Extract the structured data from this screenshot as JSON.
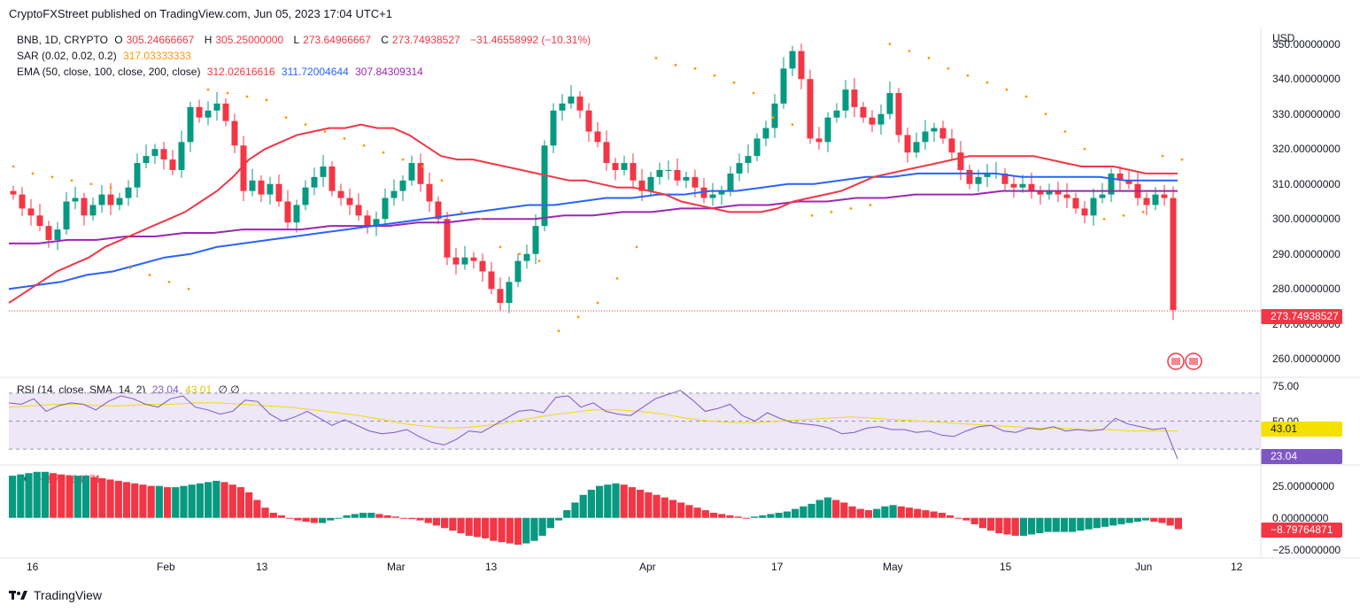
{
  "header": {
    "publisher_line": "CryptoFXStreet published on TradingView.com, Jun 05, 2023 17:04 UTC+1"
  },
  "legend": {
    "symbol": "BNB, 1D, CRYPTO",
    "open_label": "O",
    "open": "305.24666667",
    "high_label": "H",
    "high": "305.25000000",
    "low_label": "L",
    "low": "273.64966667",
    "close_label": "C",
    "close": "273.74938527",
    "change": "−31.46558992 (−10.31%)",
    "sar_label": "SAR (0.02, 0.02, 0.2)",
    "sar_value": "317.03333333",
    "ema_label": "EMA (50, close, 100, close, 200, close)",
    "ema50_value": "312.02616616",
    "ema100_value": "311.72004644",
    "ema200_value": "307.84309314",
    "rsi_label": "RSI (14, close, SMA, 14, 2)",
    "rsi_value": "23.04",
    "rsi_sma_value": "43.01",
    "rsi_extra": "∅ ∅",
    "ao_label": "AO",
    "ao_value": "−8.79764871"
  },
  "colors": {
    "up": "#089981",
    "down": "#f23645",
    "sar": "#ff9800",
    "ema50": "#f23645",
    "ema100": "#2962ff",
    "ema200": "#9c27b0",
    "rsi": "#7e57c2",
    "rsi_sma": "#f5d90a",
    "rsi_band": "#ede7f6"
  },
  "chart_data": [
    {
      "type": "candlestick",
      "title": "BNB, 1D, CRYPTO",
      "currency": "USD",
      "ylim": [
        255,
        355
      ],
      "y_ticks": [
        "350.00000000",
        "340.00000000",
        "330.00000000",
        "320.00000000",
        "310.00000000",
        "300.00000000",
        "290.00000000",
        "280.00000000",
        "270.00000000",
        "260.00000000"
      ],
      "x_tick_labels": [
        "16",
        "Feb",
        "13",
        "Mar",
        "13",
        "Apr",
        "17",
        "May",
        "15",
        "Jun",
        "12"
      ],
      "last_price_label": "273.74938527",
      "last_price": 273.75,
      "closes": [
        307,
        303,
        301,
        298,
        294,
        297,
        305,
        306,
        301,
        304,
        307,
        304,
        306,
        309,
        316,
        318,
        320,
        317,
        314,
        322,
        332,
        329,
        331,
        333,
        328,
        321,
        308,
        311,
        307,
        310,
        305,
        299,
        304,
        309,
        312,
        315,
        308,
        306,
        304,
        301,
        298,
        300,
        306,
        308,
        311,
        316,
        310,
        305,
        300,
        289,
        287,
        289,
        288,
        285,
        280,
        276,
        282,
        288,
        290,
        298,
        321,
        331,
        333,
        335,
        331,
        325,
        322,
        316,
        314,
        316,
        311,
        308,
        312,
        314,
        314,
        311,
        312,
        309,
        306,
        307,
        308,
        313,
        316,
        318,
        323,
        326,
        333,
        343,
        348,
        340,
        323,
        322,
        329,
        331,
        337,
        332,
        329,
        327,
        330,
        336,
        324,
        319,
        322,
        325,
        326,
        323,
        319,
        314,
        310,
        312,
        313,
        313,
        310,
        309,
        310,
        308,
        307,
        308,
        307,
        306,
        303,
        301,
        306,
        307,
        313,
        311,
        310,
        306,
        304,
        307,
        306,
        274
      ],
      "ema50": [
        276,
        279,
        282,
        285,
        287,
        289,
        292,
        294,
        296,
        298,
        300,
        302,
        305,
        308,
        312,
        317,
        320,
        322,
        324,
        325,
        326,
        326,
        327,
        326,
        326,
        324,
        321,
        318,
        317,
        317,
        316,
        315,
        314,
        313,
        312,
        311,
        311,
        310,
        309,
        309,
        308,
        307,
        305,
        304,
        303,
        302,
        302,
        302,
        303,
        305,
        306,
        307,
        308,
        310,
        312,
        313,
        314,
        315,
        316,
        317,
        318,
        318,
        318,
        318,
        318,
        317,
        316,
        315,
        315,
        315,
        314,
        313,
        313,
        313
      ],
      "ema100": [
        280,
        281,
        282,
        284,
        285,
        287,
        289,
        290,
        292,
        293,
        294,
        295,
        296,
        297,
        298,
        299,
        300,
        301,
        302,
        303,
        304,
        304,
        305,
        306,
        306,
        307,
        307,
        308,
        308,
        309,
        310,
        310,
        311,
        312,
        312,
        313,
        313,
        313,
        313,
        312,
        312,
        312,
        312,
        311,
        311,
        311
      ],
      "ema200": [
        293,
        293,
        294,
        294,
        295,
        295,
        296,
        296,
        297,
        297,
        297,
        298,
        298,
        298,
        299,
        299,
        300,
        300,
        300,
        301,
        301,
        302,
        302,
        303,
        303,
        304,
        304,
        305,
        305,
        306,
        306,
        307,
        307,
        307,
        308,
        308,
        308,
        308,
        308,
        308,
        308
      ],
      "sar": [
        315,
        313,
        312,
        311,
        310,
        309,
        286,
        284,
        282,
        280,
        337,
        336,
        335,
        334,
        329,
        327,
        325,
        323,
        321,
        319,
        317,
        315,
        311,
        302,
        300,
        292,
        290,
        288,
        268,
        272,
        276,
        283,
        292,
        346,
        344,
        343,
        341,
        339,
        336,
        329,
        327,
        301,
        302,
        303,
        304,
        350,
        348,
        346,
        343,
        341,
        339,
        337,
        335,
        330,
        325,
        320,
        300,
        301,
        302,
        318,
        317
      ]
    },
    {
      "type": "line",
      "title": "RSI (14, close, SMA, 14, 2)",
      "ylim": [
        20,
        80
      ],
      "y_ticks": [
        "75.00",
        "50.00"
      ],
      "levels": [
        70,
        50,
        30
      ],
      "rsi_series": [
        63,
        62,
        66,
        57,
        61,
        63,
        62,
        58,
        64,
        68,
        66,
        62,
        60,
        66,
        68,
        60,
        58,
        55,
        57,
        65,
        64,
        55,
        50,
        53,
        57,
        52,
        47,
        51,
        47,
        43,
        41,
        42,
        44,
        39,
        35,
        33,
        37,
        43,
        42,
        47,
        52,
        57,
        58,
        56,
        67,
        68,
        60,
        63,
        57,
        55,
        54,
        60,
        66,
        69,
        72,
        65,
        57,
        59,
        62,
        54,
        50,
        56,
        52,
        49,
        48,
        47,
        45,
        41,
        42,
        45,
        46,
        44,
        44,
        42,
        43,
        40,
        39,
        43,
        46,
        47,
        43,
        42,
        45,
        44,
        46,
        43,
        44,
        43,
        44,
        52,
        48,
        46,
        44,
        45,
        23.04
      ],
      "sma_series": [
        60,
        61,
        62,
        62,
        61,
        61,
        62,
        62,
        63,
        63,
        62,
        61,
        60,
        58,
        56,
        54,
        51,
        48,
        46,
        45,
        46,
        48,
        51,
        54,
        56,
        58,
        58,
        57,
        55,
        52,
        50,
        49,
        49,
        50,
        51,
        52,
        53,
        52,
        51,
        50,
        49,
        48,
        47,
        46,
        45,
        45,
        44,
        44,
        43,
        43,
        43.01
      ],
      "last_rsi_label": "23.04",
      "last_sma_label": "43.01"
    },
    {
      "type": "bar",
      "title": "AO",
      "ylim": [
        -30,
        40
      ],
      "y_ticks": [
        "25.00000000",
        "0.00000000",
        "−25.00000000"
      ],
      "values": [
        33,
        34,
        35,
        36,
        36,
        35,
        34,
        33,
        33,
        33,
        32,
        31,
        30,
        29,
        28,
        27,
        26,
        25,
        25,
        24,
        24,
        25,
        26,
        27,
        28,
        29,
        28,
        26,
        24,
        20,
        14,
        8,
        4,
        2,
        0,
        -2,
        -3,
        -4,
        -4,
        -2,
        0,
        2,
        3,
        4,
        4,
        3,
        2,
        1,
        0,
        -1,
        -2,
        -4,
        -6,
        -8,
        -10,
        -12,
        -14,
        -15,
        -16,
        -18,
        -19,
        -20,
        -21,
        -20,
        -18,
        -14,
        -8,
        -2,
        6,
        12,
        18,
        22,
        25,
        26,
        27,
        26,
        24,
        22,
        20,
        18,
        16,
        14,
        12,
        10,
        8,
        6,
        4,
        3,
        2,
        1,
        0,
        1,
        2,
        3,
        4,
        5,
        7,
        9,
        11,
        14,
        16,
        14,
        12,
        9,
        7,
        6,
        7,
        9,
        10,
        9,
        8,
        7,
        6,
        5,
        4,
        2,
        0,
        -2,
        -5,
        -8,
        -10,
        -12,
        -13,
        -14,
        -14,
        -13,
        -12,
        -11,
        -11,
        -11,
        -11,
        -10,
        -9,
        -8,
        -7,
        -6,
        -5,
        -4,
        -3,
        -2,
        -3,
        -4,
        -6,
        -8.79764871
      ],
      "last_value_label": "−8.79764871"
    }
  ],
  "footer": {
    "brand": "TradingView"
  }
}
